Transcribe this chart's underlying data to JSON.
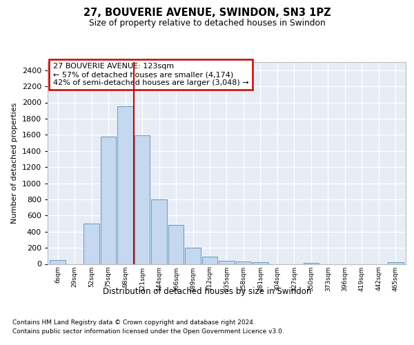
{
  "title": "27, BOUVERIE AVENUE, SWINDON, SN3 1PZ",
  "subtitle": "Size of property relative to detached houses in Swindon",
  "xlabel": "Distribution of detached houses by size in Swindon",
  "ylabel": "Number of detached properties",
  "footnote1": "Contains HM Land Registry data © Crown copyright and database right 2024.",
  "footnote2": "Contains public sector information licensed under the Open Government Licence v3.0.",
  "annotation_line1": "27 BOUVERIE AVENUE: 123sqm",
  "annotation_line2": "← 57% of detached houses are smaller (4,174)",
  "annotation_line3": "42% of semi-detached houses are larger (3,048) →",
  "bar_color": "#c5d8ef",
  "bar_edge_color": "#6ba3c8",
  "vline_color": "#cc0000",
  "plot_bg_color": "#e8edf5",
  "categories": [
    "6sqm",
    "29sqm",
    "52sqm",
    "75sqm",
    "98sqm",
    "121sqm",
    "144sqm",
    "166sqm",
    "189sqm",
    "212sqm",
    "235sqm",
    "258sqm",
    "281sqm",
    "304sqm",
    "327sqm",
    "350sqm",
    "373sqm",
    "396sqm",
    "419sqm",
    "442sqm",
    "465sqm"
  ],
  "values": [
    50,
    0,
    500,
    1580,
    1950,
    1590,
    800,
    480,
    200,
    90,
    40,
    30,
    20,
    0,
    0,
    15,
    0,
    0,
    0,
    0,
    20
  ],
  "ylim": [
    0,
    2500
  ],
  "yticks": [
    0,
    200,
    400,
    600,
    800,
    1000,
    1200,
    1400,
    1600,
    1800,
    2000,
    2200,
    2400
  ],
  "vline_x_index": 4.5
}
